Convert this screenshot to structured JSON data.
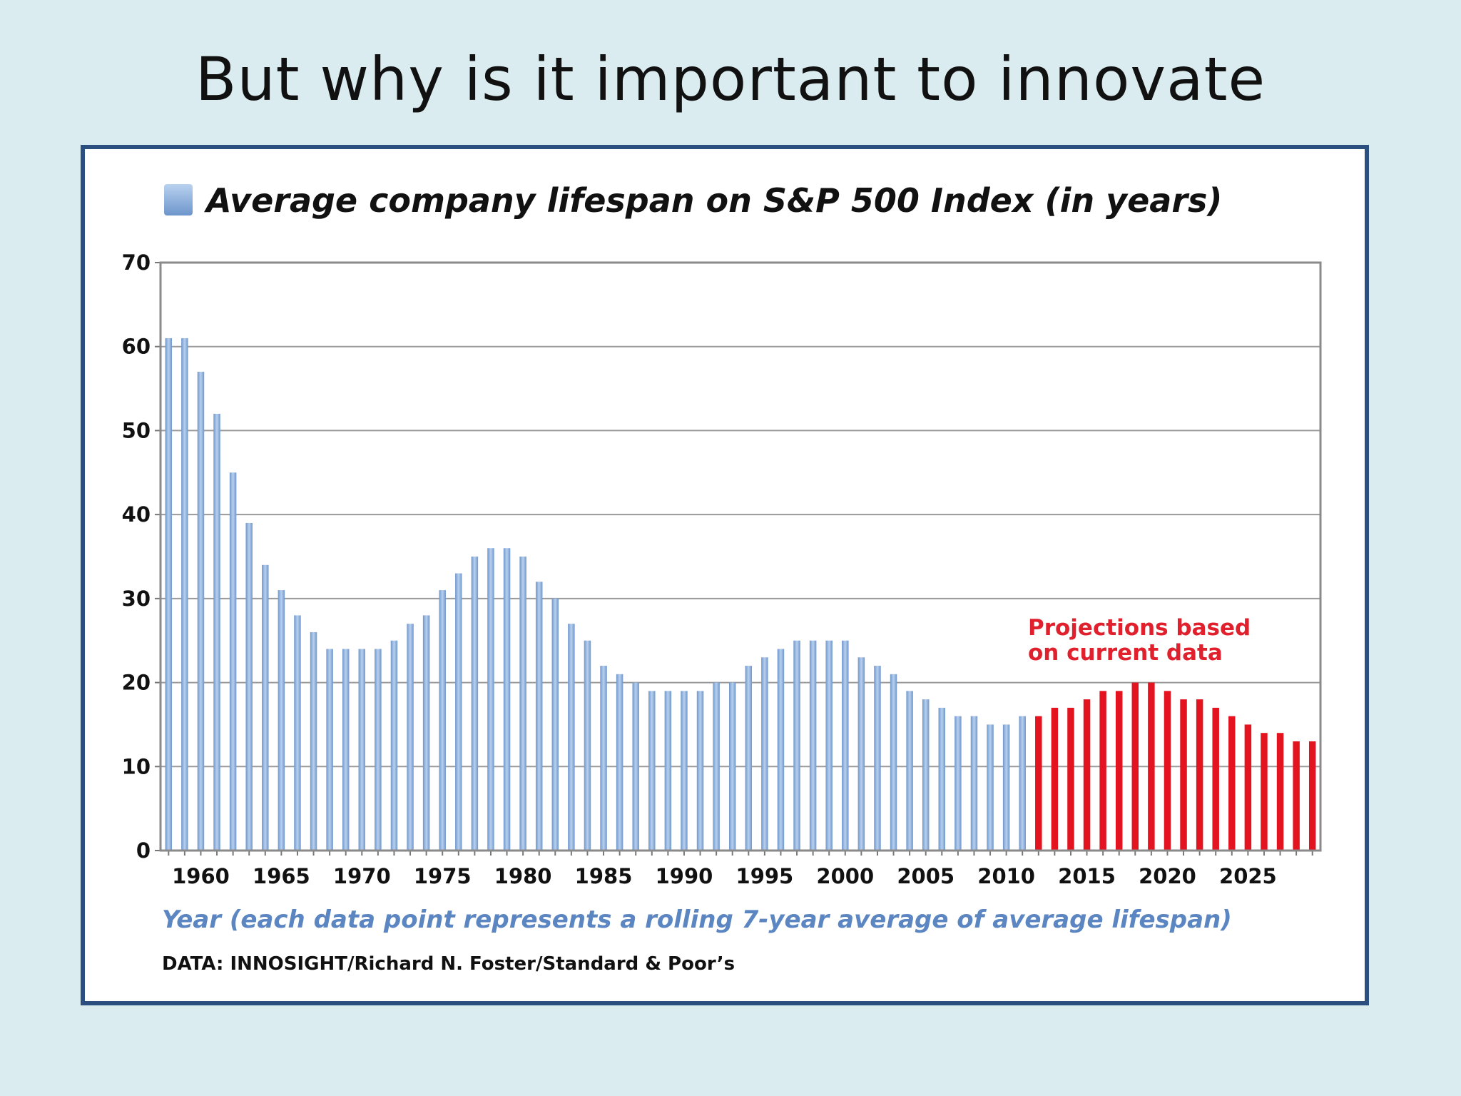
{
  "slide": {
    "title": "But why is it important to innovate"
  },
  "colors": {
    "historical": "#8fb1dc",
    "projection": "#e3131f",
    "frame": "#2b4f7e",
    "background": "#dbecf1"
  },
  "chart_data": {
    "type": "bar",
    "title": "Average company lifespan on S&P 500 Index (in years)",
    "legend_placement": "top-left",
    "xlabel": "Year (each data point represents a rolling 7-year average of average lifespan)",
    "ylabel": "",
    "ylim": [
      0,
      70
    ],
    "yticks": [
      "0",
      "10",
      "20",
      "30",
      "40",
      "50",
      "60",
      "70"
    ],
    "xtick_labels": [
      "1960",
      "1965",
      "1970",
      "1975",
      "1980",
      "1985",
      "1990",
      "1995",
      "2000",
      "2005",
      "2010",
      "2015",
      "2020",
      "2025"
    ],
    "grid": true,
    "annotation": [
      "Projections based",
      "on current data"
    ],
    "source": "DATA: INNOSIGHT/Richard N. Foster/Standard & Poor’s",
    "x": [
      1958,
      1959,
      1960,
      1961,
      1962,
      1963,
      1964,
      1965,
      1966,
      1967,
      1968,
      1969,
      1970,
      1971,
      1972,
      1973,
      1974,
      1975,
      1976,
      1977,
      1978,
      1979,
      1980,
      1981,
      1982,
      1983,
      1984,
      1985,
      1986,
      1987,
      1988,
      1989,
      1990,
      1991,
      1992,
      1993,
      1994,
      1995,
      1996,
      1997,
      1998,
      1999,
      2000,
      2001,
      2002,
      2003,
      2004,
      2005,
      2006,
      2007,
      2008,
      2009,
      2010,
      2011,
      2012,
      2013,
      2014,
      2015,
      2016,
      2017,
      2018,
      2019,
      2020,
      2021,
      2022,
      2023,
      2024,
      2025,
      2026,
      2027,
      2028,
      2029
    ],
    "series": [
      {
        "values": [
          61,
          61,
          57,
          52,
          45,
          39,
          34,
          31,
          28,
          26,
          24,
          24,
          24,
          24,
          25,
          27,
          28,
          31,
          33,
          35,
          36,
          36,
          35,
          32,
          30,
          27,
          25,
          22,
          21,
          20,
          19,
          19,
          19,
          19,
          20,
          20,
          22,
          23,
          24,
          25,
          25,
          25,
          25,
          23,
          22,
          21,
          19,
          18,
          17,
          16,
          16,
          15,
          15,
          16,
          null,
          null,
          null,
          null,
          null,
          null,
          null,
          null,
          null,
          null,
          null,
          null,
          null,
          null,
          null,
          null,
          null,
          null
        ]
      },
      {
        "values": [
          null,
          null,
          null,
          null,
          null,
          null,
          null,
          null,
          null,
          null,
          null,
          null,
          null,
          null,
          null,
          null,
          null,
          null,
          null,
          null,
          null,
          null,
          null,
          null,
          null,
          null,
          null,
          null,
          null,
          null,
          null,
          null,
          null,
          null,
          null,
          null,
          null,
          null,
          null,
          null,
          null,
          null,
          null,
          null,
          null,
          null,
          null,
          null,
          null,
          null,
          null,
          null,
          null,
          null,
          16,
          17,
          17,
          18,
          19,
          19,
          20,
          20,
          19,
          18,
          18,
          17,
          16,
          15,
          14,
          14,
          13,
          13
        ]
      }
    ]
  }
}
